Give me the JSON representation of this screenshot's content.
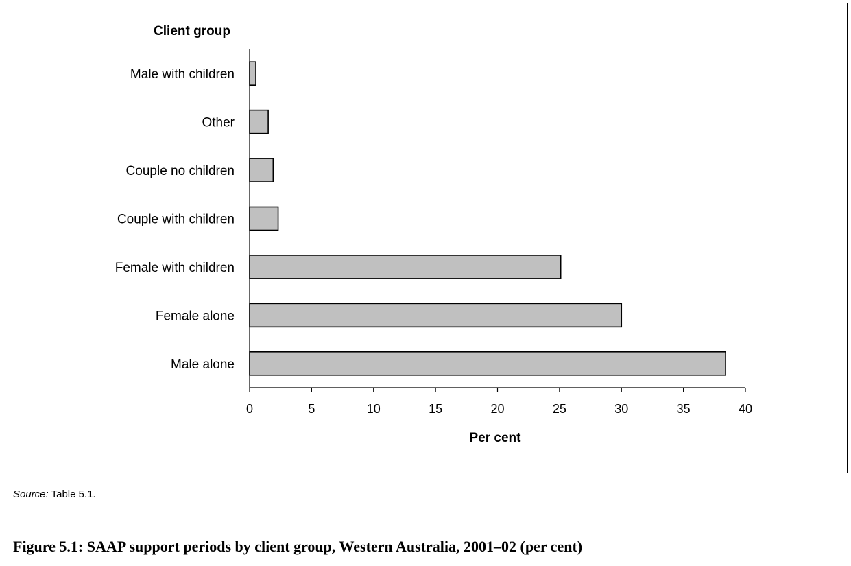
{
  "chart_data": {
    "type": "bar",
    "orientation": "horizontal",
    "ylabel": "Client group",
    "xlabel": "Per cent",
    "categories": [
      "Male with children",
      "Other",
      "Couple no children",
      "Couple with children",
      "Female with children",
      "Female alone",
      "Male alone"
    ],
    "values": [
      0.5,
      1.5,
      1.9,
      2.3,
      25.1,
      30.0,
      38.4
    ],
    "xlim": [
      0,
      40
    ],
    "xticks": [
      "0",
      "5",
      "10",
      "15",
      "20",
      "25",
      "30",
      "35",
      "40"
    ],
    "bar_color": "#c0c0c0",
    "grid": false,
    "legend": "none"
  },
  "source": {
    "prefix": "Source:",
    "text": " Table 5.1."
  },
  "caption": "Figure 5.1: SAAP support periods by client group, Western Australia, 2001–02 (per cent)"
}
